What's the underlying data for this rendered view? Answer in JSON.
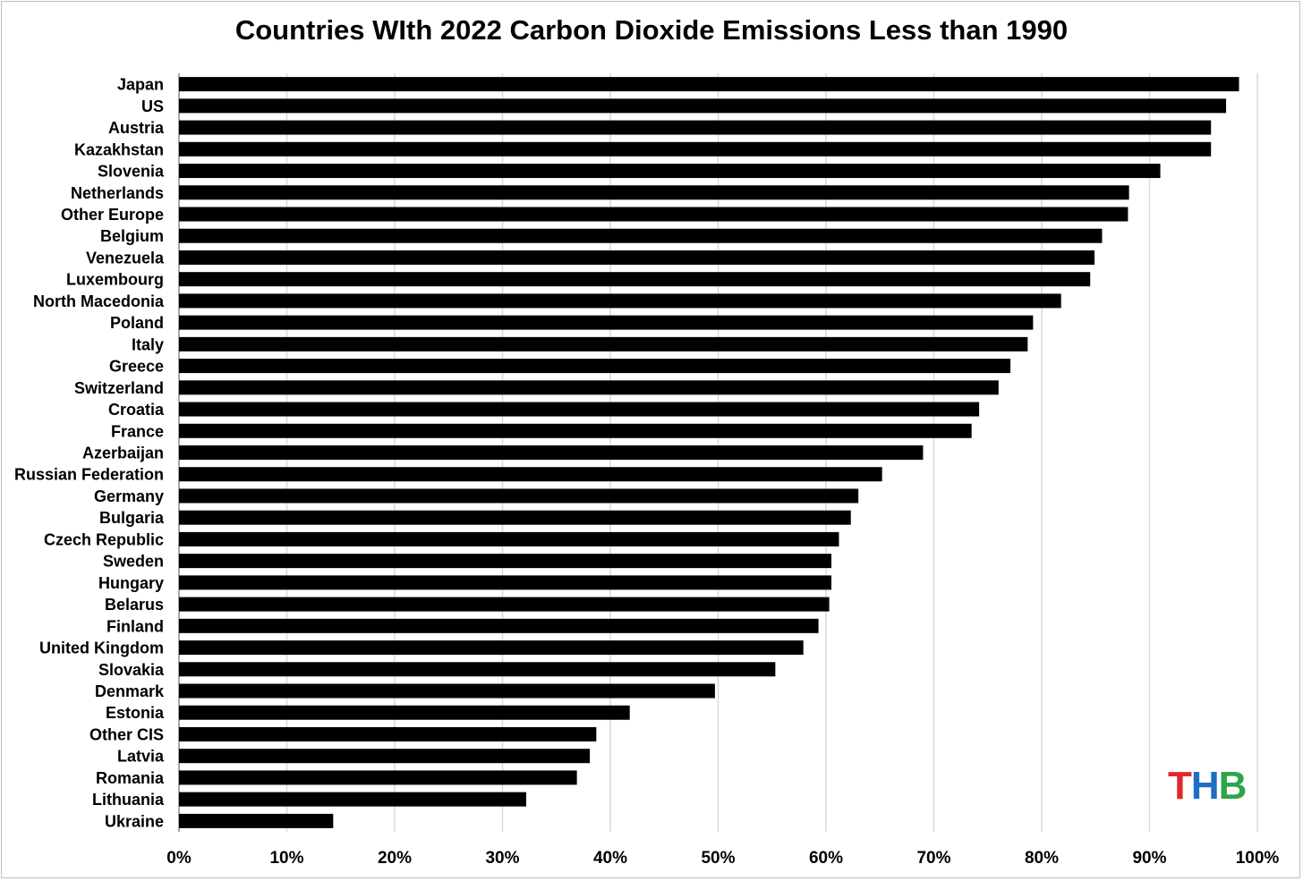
{
  "chart_data": {
    "type": "bar",
    "orientation": "horizontal",
    "title": "Countries WIth 2022 Carbon Dioxide Emissions Less than 1990",
    "xlabel": "",
    "ylabel": "",
    "xlim": [
      0,
      1
    ],
    "x_ticks": [
      "0%",
      "10%",
      "20%",
      "30%",
      "40%",
      "50%",
      "60%",
      "70%",
      "80%",
      "90%",
      "100%"
    ],
    "grid": "vertical",
    "bar_color": "#000000",
    "grid_color": "#d9d9d9",
    "categories": [
      "Japan",
      "US",
      "Austria",
      "Kazakhstan",
      "Slovenia",
      "Netherlands",
      "Other Europe",
      "Belgium",
      "Venezuela",
      "Luxembourg",
      "North Macedonia",
      "Poland",
      "Italy",
      "Greece",
      "Switzerland",
      "Croatia",
      "France",
      "Azerbaijan",
      "Russian Federation",
      "Germany",
      "Bulgaria",
      "Czech Republic",
      "Sweden",
      "Hungary",
      "Belarus",
      "Finland",
      "United Kingdom",
      "Slovakia",
      "Denmark",
      "Estonia",
      "Other CIS",
      "Latvia",
      "Romania",
      "Lithuania",
      "Ukraine"
    ],
    "values": [
      0.983,
      0.971,
      0.957,
      0.957,
      0.91,
      0.881,
      0.88,
      0.856,
      0.849,
      0.845,
      0.818,
      0.792,
      0.787,
      0.771,
      0.76,
      0.742,
      0.735,
      0.69,
      0.652,
      0.63,
      0.623,
      0.612,
      0.605,
      0.605,
      0.603,
      0.593,
      0.579,
      0.553,
      0.497,
      0.418,
      0.387,
      0.381,
      0.369,
      0.322,
      0.143
    ]
  },
  "logo": {
    "letters": [
      "T",
      "H",
      "B"
    ],
    "colors": [
      "#e3262b",
      "#1f6fc1",
      "#2ca548"
    ]
  }
}
